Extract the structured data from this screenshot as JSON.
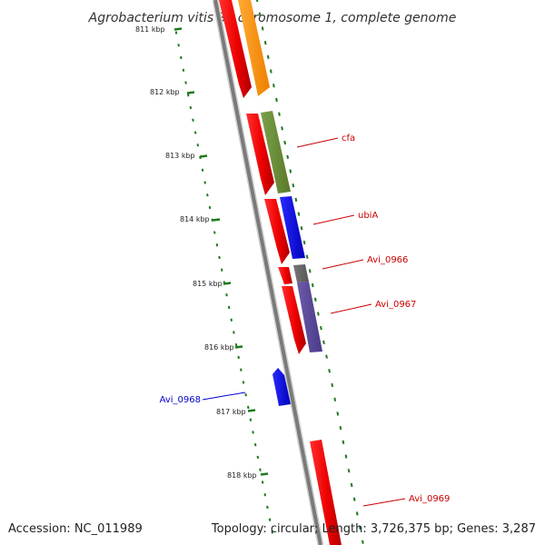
{
  "title": "Agrobacterium vitis S4 chromosome 1, complete genome",
  "footer": {
    "accession": "Accession: NC_011989",
    "topology": "Topology: circular; Length: 3,726,375 bp; Genes: 3,287"
  },
  "colors": {
    "backbone": "#8a8a8a",
    "tick": "#1f7a1f",
    "label_red": "#cc0000",
    "label_blue": "#0000cc"
  },
  "kbp_labels": [
    "811 kbp",
    "812 kbp",
    "813 kbp",
    "814 kbp",
    "815 kbp",
    "816 kbp",
    "817 kbp",
    "818 kbp"
  ],
  "genes": [
    {
      "name": "cfa",
      "color": "#cc0000"
    },
    {
      "name": "ubiA",
      "color": "#cc0000"
    },
    {
      "name": "Avi_0966",
      "color": "#cc0000"
    },
    {
      "name": "Avi_0967",
      "color": "#cc0000"
    },
    {
      "name": "Avi_0968",
      "color": "#0000cc"
    },
    {
      "name": "Avi_0969",
      "color": "#cc0000"
    }
  ]
}
